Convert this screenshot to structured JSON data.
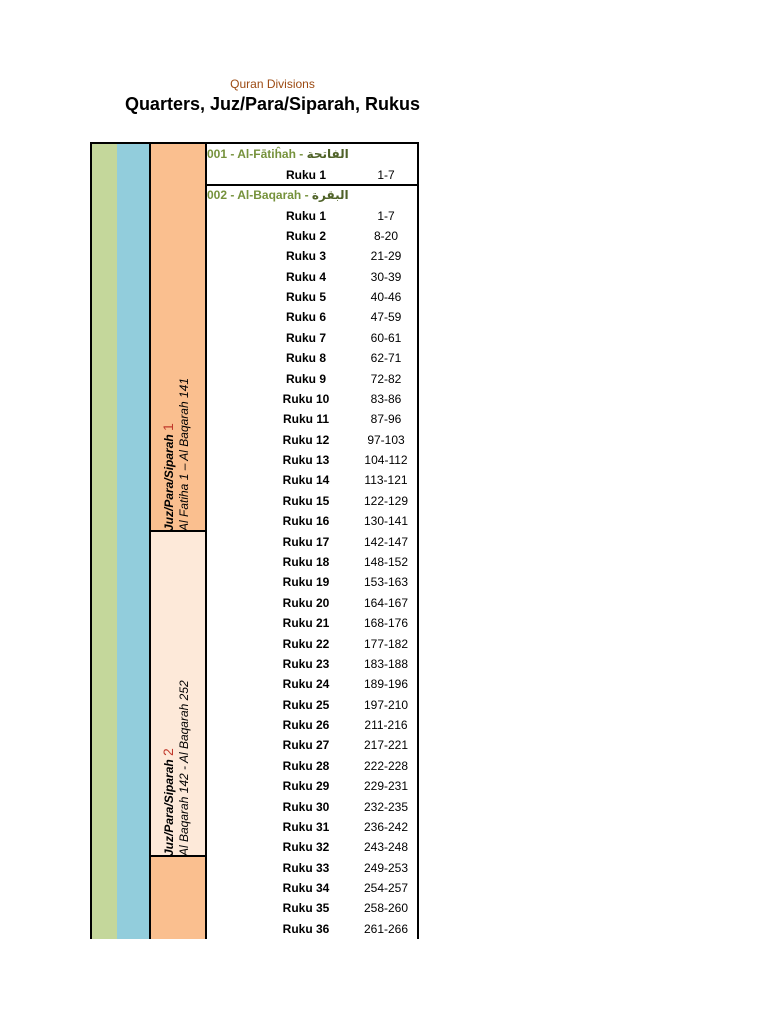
{
  "header": {
    "subtitle": "Quran Divisions",
    "title": "Quarters, Juz/Para/Siparah, Rukus"
  },
  "colors": {
    "quarter": "#c4d79b",
    "half": "#92cddc",
    "juz_odd": "#fabf8f",
    "juz_even": "#fde9d9",
    "surah_text": "#76923c",
    "juz_number": "#c0392b"
  },
  "juz": [
    {
      "label": "Juz/Para/Siparah",
      "number": "1",
      "range": "Al Fatiha 1 – Al Baqarah 141"
    },
    {
      "label": "Juz/Para/Siparah",
      "number": "2",
      "range": "Al Baqarah 142 - Al Baqarah 252"
    }
  ],
  "surahs": [
    {
      "name": "001 - Al-Fātiĥah - ",
      "arabic": "الفاتحة",
      "rukus": [
        {
          "ruku": "Ruku 1",
          "ayat": "1-7"
        }
      ]
    },
    {
      "name": "002 - Al-Baqarah - ",
      "arabic": "البقرة",
      "rukus": [
        {
          "ruku": "Ruku 1",
          "ayat": "1-7"
        },
        {
          "ruku": "Ruku 2",
          "ayat": "8-20"
        },
        {
          "ruku": "Ruku 3",
          "ayat": "21-29"
        },
        {
          "ruku": "Ruku 4",
          "ayat": "30-39"
        },
        {
          "ruku": "Ruku 5",
          "ayat": "40-46"
        },
        {
          "ruku": "Ruku 6",
          "ayat": "47-59"
        },
        {
          "ruku": "Ruku 7",
          "ayat": "60-61"
        },
        {
          "ruku": "Ruku 8",
          "ayat": "62-71"
        },
        {
          "ruku": "Ruku 9",
          "ayat": "72-82"
        },
        {
          "ruku": "Ruku 10",
          "ayat": "83-86"
        },
        {
          "ruku": "Ruku 11",
          "ayat": "87-96"
        },
        {
          "ruku": "Ruku 12",
          "ayat": "97-103"
        },
        {
          "ruku": "Ruku 13",
          "ayat": "104-112"
        },
        {
          "ruku": "Ruku 14",
          "ayat": "113-121"
        },
        {
          "ruku": "Ruku 15",
          "ayat": "122-129"
        },
        {
          "ruku": "Ruku 16",
          "ayat": "130-141"
        },
        {
          "ruku": "Ruku 17",
          "ayat": "142-147"
        },
        {
          "ruku": "Ruku 18",
          "ayat": "148-152"
        },
        {
          "ruku": "Ruku 19",
          "ayat": "153-163"
        },
        {
          "ruku": "Ruku 20",
          "ayat": "164-167"
        },
        {
          "ruku": "Ruku 21",
          "ayat": "168-176"
        },
        {
          "ruku": "Ruku 22",
          "ayat": "177-182"
        },
        {
          "ruku": "Ruku 23",
          "ayat": "183-188"
        },
        {
          "ruku": "Ruku 24",
          "ayat": "189-196"
        },
        {
          "ruku": "Ruku 25",
          "ayat": "197-210"
        },
        {
          "ruku": "Ruku 26",
          "ayat": "211-216"
        },
        {
          "ruku": "Ruku 27",
          "ayat": "217-221"
        },
        {
          "ruku": "Ruku 28",
          "ayat": "222-228"
        },
        {
          "ruku": "Ruku 29",
          "ayat": "229-231"
        },
        {
          "ruku": "Ruku 30",
          "ayat": "232-235"
        },
        {
          "ruku": "Ruku 31",
          "ayat": "236-242"
        },
        {
          "ruku": "Ruku 32",
          "ayat": "243-248"
        },
        {
          "ruku": "Ruku 33",
          "ayat": "249-253"
        },
        {
          "ruku": "Ruku 34",
          "ayat": "254-257"
        },
        {
          "ruku": "Ruku 35",
          "ayat": "258-260"
        },
        {
          "ruku": "Ruku 36",
          "ayat": "261-266"
        }
      ]
    }
  ]
}
